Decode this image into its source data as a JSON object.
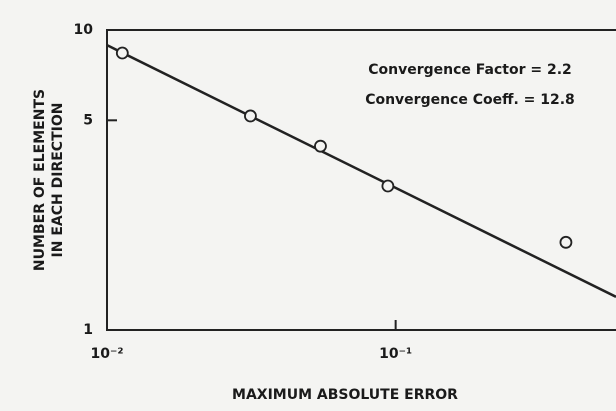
{
  "chart_data": {
    "type": "scatter",
    "xlabel": "MAXIMUM ABSOLUTE ERROR",
    "ylabel": [
      "NUMBER OF ELEMENTS",
      "IN EACH DIRECTION"
    ],
    "annotations": [
      "Convergence  Factor = 2.2",
      "Convergence  Coeff. = 12.8"
    ],
    "log_x": true,
    "log_y": true,
    "xlim": [
      0.01,
      0.58
    ],
    "ylim": [
      1,
      10
    ],
    "xticks": [
      {
        "value": 0.01,
        "label": "10⁻²"
      },
      {
        "value": 0.1,
        "label": "10⁻¹"
      }
    ],
    "yticks": [
      1,
      5,
      10
    ],
    "series": [
      {
        "name": "data",
        "color": "#222",
        "x": [
          0.0113,
          0.0314,
          0.0549,
          0.094,
          0.389
        ],
        "values": [
          8.38,
          5.17,
          4.1,
          3.02,
          1.96
        ]
      },
      {
        "name": "fit",
        "color": "#222",
        "x": [
          0.01,
          0.58
        ],
        "values": [
          8.9,
          1.29
        ]
      }
    ]
  }
}
